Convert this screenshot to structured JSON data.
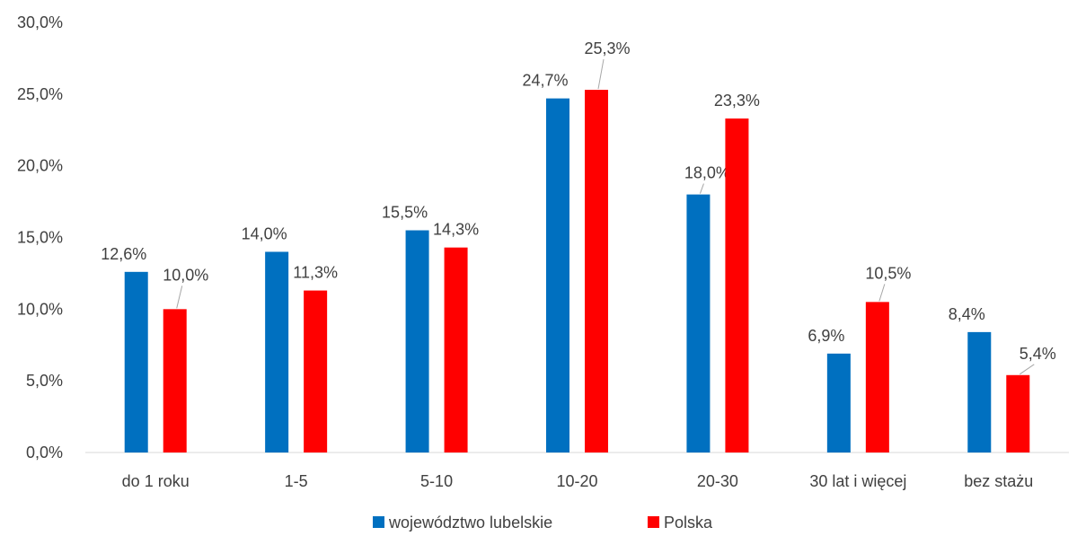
{
  "chart_data": {
    "type": "bar",
    "categories": [
      "do 1 roku",
      "1-5",
      "5-10",
      "10-20",
      "20-30",
      "30 lat i więcej",
      "bez stażu"
    ],
    "series": [
      {
        "name": "województwo lubelskie",
        "color": "#0070C0",
        "values": [
          12.6,
          14.0,
          15.5,
          24.7,
          18.0,
          6.9,
          8.4
        ],
        "labels": [
          "12,6%",
          "14,0%",
          "15,5%",
          "24,7%",
          "18,0%",
          "6,9%",
          "8,4%"
        ]
      },
      {
        "name": "Polska",
        "color": "#FF0000",
        "values": [
          10.0,
          11.3,
          14.3,
          25.3,
          23.3,
          10.5,
          5.4
        ],
        "labels": [
          "10,0%",
          "11,3%",
          "14,3%",
          "25,3%",
          "23,3%",
          "10,5%",
          "5,4%"
        ]
      }
    ],
    "y_ticks": [
      "0,0%",
      "5,0%",
      "10,0%",
      "15,0%",
      "20,0%",
      "25,0%",
      "30,0%"
    ],
    "ylim": [
      0,
      30
    ],
    "legend_position": "bottom",
    "grid": false
  }
}
